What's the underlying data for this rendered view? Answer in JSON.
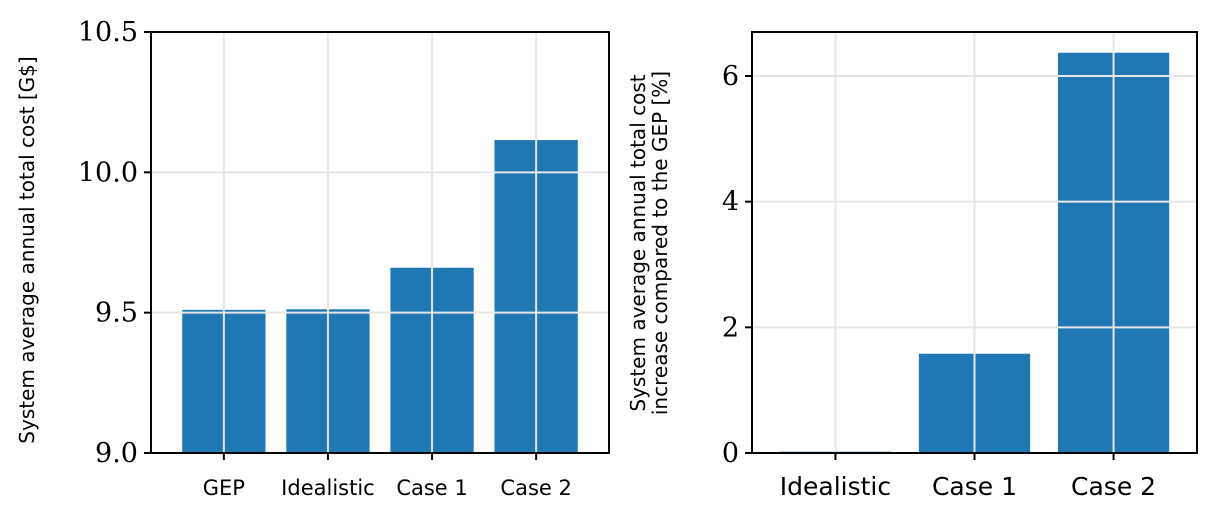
{
  "chart_data": [
    {
      "type": "bar",
      "categories": [
        "GEP",
        "Idealistic",
        "Case 1",
        "Case 2"
      ],
      "values": [
        9.51,
        9.512,
        9.66,
        10.115
      ],
      "ylabel": "System average annual total cost [G$]",
      "xlabel": "",
      "ylim": [
        9.0,
        10.5
      ],
      "yticks": [
        "9.0",
        "9.5",
        "10.0",
        "10.5"
      ],
      "ytick_values": [
        9.0,
        9.5,
        10.0,
        10.5
      ],
      "bar_color": "#1f77b4",
      "grid": true
    },
    {
      "type": "bar",
      "categories": [
        "Idealistic",
        "Case 1",
        "Case 2"
      ],
      "values": [
        0.02,
        1.58,
        6.37
      ],
      "ylabel_lines": [
        "System average annual total cost",
        "increase compared to the GEP [%]"
      ],
      "xlabel": "",
      "ylim": [
        0,
        6.7
      ],
      "yticks": [
        "0",
        "2",
        "4",
        "6"
      ],
      "ytick_values": [
        0,
        2,
        4,
        6
      ],
      "bar_color": "#1f77b4",
      "grid": true
    }
  ]
}
